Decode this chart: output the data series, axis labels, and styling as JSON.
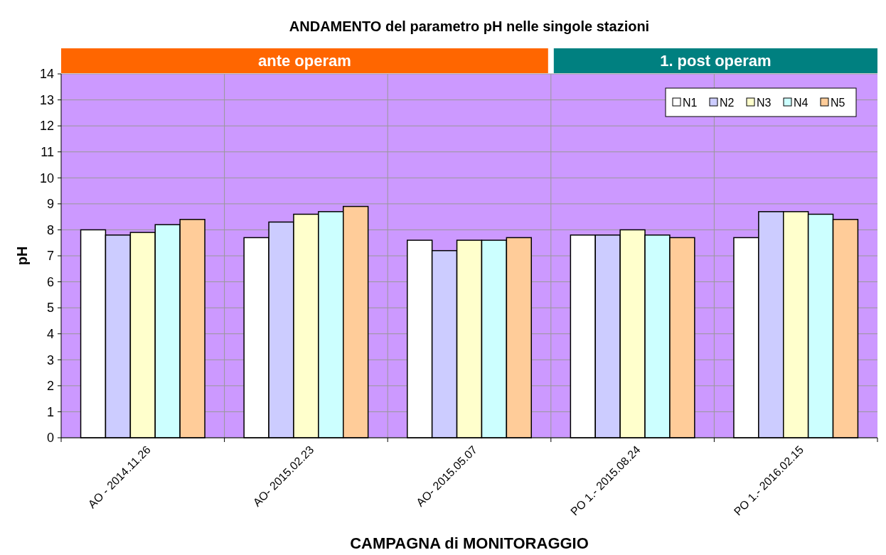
{
  "chart_data": {
    "type": "bar",
    "title": "ANDAMENTO del parametro pH nelle singole stazioni",
    "xlabel": "CAMPAGNA di MONITORAGGIO",
    "ylabel": "pH",
    "categories": [
      "AO - 2014.11.26",
      "AO- 2015.02.23",
      "AO- 2015.05.07",
      "PO 1.- 2015.08.24",
      "PO 1.- 2016.02.15"
    ],
    "series": [
      {
        "name": "N1",
        "color": "#ffffff",
        "values": [
          8.0,
          7.7,
          7.6,
          7.8,
          7.7
        ]
      },
      {
        "name": "N2",
        "color": "#ccccff",
        "values": [
          7.8,
          8.3,
          7.2,
          7.8,
          8.7
        ]
      },
      {
        "name": "N3",
        "color": "#ffffcc",
        "values": [
          7.9,
          8.6,
          7.6,
          8.0,
          8.7
        ]
      },
      {
        "name": "N4",
        "color": "#ccffff",
        "values": [
          8.2,
          8.7,
          7.6,
          7.8,
          8.6
        ]
      },
      {
        "name": "N5",
        "color": "#ffcc99",
        "values": [
          8.4,
          8.9,
          7.7,
          7.7,
          8.4
        ]
      }
    ],
    "annotations": [
      "ante operam",
      "1. post operam"
    ],
    "ylim": [
      0,
      14
    ],
    "yticks": [
      0,
      1,
      2,
      3,
      4,
      5,
      6,
      7,
      8,
      9,
      10,
      11,
      12,
      13,
      14
    ],
    "grid": true,
    "legend": "top right"
  }
}
